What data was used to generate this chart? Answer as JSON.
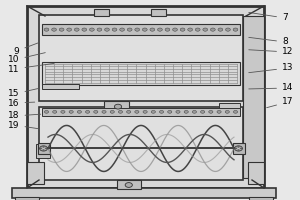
{
  "bg_color": "#e8e8e8",
  "line_color": "#333333",
  "white": "#f5f5f5",
  "light_gray": "#d0d0d0",
  "med_gray": "#b0b0b0",
  "dark_gray": "#808080",
  "figsize": [
    3.0,
    2.0
  ],
  "dpi": 100
}
